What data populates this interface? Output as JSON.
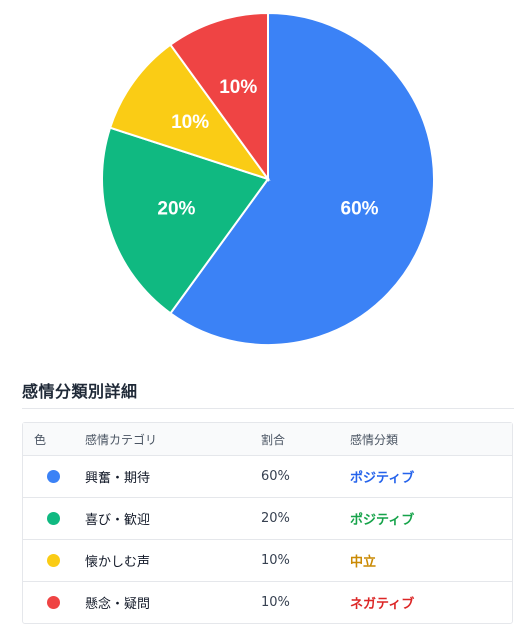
{
  "chart_data": {
    "type": "pie",
    "slices": [
      {
        "label": "興奮・期待",
        "value": 60,
        "display": "60%",
        "color": "#3b82f6"
      },
      {
        "label": "喜び・歓迎",
        "value": 20,
        "display": "20%",
        "color": "#10b981"
      },
      {
        "label": "懐かしむ声",
        "value": 10,
        "display": "10%",
        "color": "#facc15"
      },
      {
        "label": "懸念・疑問",
        "value": 10,
        "display": "10%",
        "color": "#ef4444"
      }
    ]
  },
  "details": {
    "title": "感情分類別詳細",
    "headers": {
      "color": "色",
      "category": "感情カテゴリ",
      "ratio": "割合",
      "classification": "感情分類"
    },
    "rows": [
      {
        "category": "興奮・期待",
        "ratio": "60%",
        "classification": "ポジティブ",
        "dot_color": "#3b82f6",
        "class_color": "#2563eb"
      },
      {
        "category": "喜び・歓迎",
        "ratio": "20%",
        "classification": "ポジティブ",
        "dot_color": "#10b981",
        "class_color": "#16a34a"
      },
      {
        "category": "懐かしむ声",
        "ratio": "10%",
        "classification": "中立",
        "dot_color": "#facc15",
        "class_color": "#ca8a04"
      },
      {
        "category": "懸念・疑問",
        "ratio": "10%",
        "classification": "ネガティブ",
        "dot_color": "#ef4444",
        "class_color": "#dc2626"
      }
    ]
  }
}
